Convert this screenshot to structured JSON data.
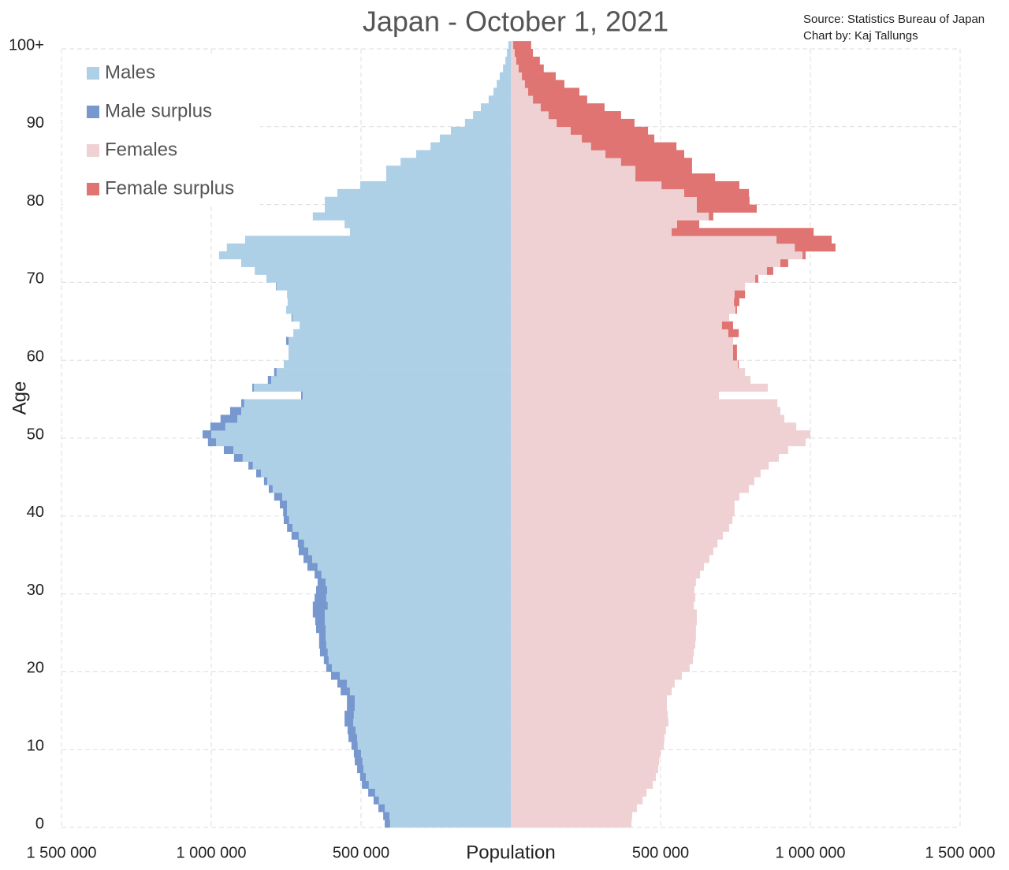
{
  "chart_data": {
    "type": "population-pyramid",
    "title": "Japan - October 1, 2021",
    "source": "Source: Statistics Bureau of Japan",
    "credit": "Chart by: Kaj Tallungs",
    "x_label": "Population",
    "y_label": "Age",
    "ages": [
      0,
      1,
      2,
      3,
      4,
      5,
      6,
      7,
      8,
      9,
      10,
      11,
      12,
      13,
      14,
      15,
      16,
      17,
      18,
      19,
      20,
      21,
      22,
      23,
      24,
      25,
      26,
      27,
      28,
      29,
      30,
      31,
      32,
      33,
      34,
      35,
      36,
      37,
      38,
      39,
      40,
      41,
      42,
      43,
      44,
      45,
      46,
      47,
      48,
      49,
      50,
      51,
      52,
      53,
      54,
      55,
      56,
      57,
      58,
      59,
      60,
      61,
      62,
      63,
      64,
      65,
      66,
      67,
      68,
      69,
      70,
      71,
      72,
      73,
      74,
      75,
      76,
      77,
      78,
      79,
      80,
      81,
      82,
      83,
      84,
      85,
      86,
      87,
      88,
      89,
      90,
      91,
      92,
      93,
      94,
      95,
      96,
      97,
      98,
      99,
      100
    ],
    "series": [
      {
        "name": "Males",
        "color": "#aed0e7",
        "surplus_name": "Male surplus",
        "surplus_color": "#7698cf",
        "values": [
          421000,
          426000,
          442000,
          458000,
          476000,
          497000,
          503000,
          513000,
          521000,
          524000,
          532000,
          542000,
          545000,
          555000,
          555000,
          547000,
          547000,
          568000,
          579000,
          600000,
          616000,
          624000,
          637000,
          640000,
          640000,
          650000,
          653000,
          661000,
          661000,
          655000,
          650000,
          645000,
          655000,
          679000,
          692000,
          708000,
          711000,
          732000,
          747000,
          758000,
          760000,
          771000,
          790000,
          808000,
          824000,
          850000,
          876000,
          924000,
          958000,
          1011000,
          1029000,
          1003000,
          969000,
          937000,
          900000,
          700000,
          863000,
          811000,
          790000,
          758000,
          742000,
          742000,
          750000,
          726000,
          705000,
          732000,
          750000,
          745000,
          747000,
          784000,
          816000,
          855000,
          900000,
          974000,
          948000,
          887000,
          537000,
          555000,
          661000,
          621000,
          621000,
          579000,
          503000,
          416000,
          416000,
          368000,
          316000,
          268000,
          237000,
          200000,
          153000,
          126000,
          100000,
          74000,
          58000,
          47000,
          37000,
          26000,
          18000,
          13000,
          8000
        ]
      },
      {
        "name": "Females",
        "color": "#efd1d3",
        "surplus_name": "Female surplus",
        "surplus_color": "#df7472",
        "values": [
          403000,
          405000,
          421000,
          440000,
          453000,
          474000,
          484000,
          492000,
          495000,
          500000,
          511000,
          513000,
          518000,
          526000,
          524000,
          521000,
          521000,
          537000,
          547000,
          571000,
          597000,
          608000,
          611000,
          616000,
          618000,
          618000,
          621000,
          621000,
          611000,
          616000,
          613000,
          618000,
          632000,
          645000,
          663000,
          676000,
          690000,
          708000,
          729000,
          740000,
          747000,
          747000,
          763000,
          795000,
          813000,
          834000,
          861000,
          895000,
          926000,
          984000,
          1000000,
          953000,
          913000,
          900000,
          890000,
          695000,
          858000,
          800000,
          782000,
          761000,
          755000,
          755000,
          742000,
          761000,
          742000,
          729000,
          755000,
          763000,
          782000,
          782000,
          826000,
          876000,
          926000,
          984000,
          1084000,
          1071000,
          1011000,
          629000,
          676000,
          821000,
          797000,
          795000,
          763000,
          682000,
          605000,
          605000,
          579000,
          553000,
          479000,
          458000,
          413000,
          368000,
          313000,
          255000,
          229000,
          179000,
          150000,
          110000,
          97000,
          74000,
          68000
        ]
      }
    ],
    "xlim": [
      0,
      1500000
    ],
    "xticks": [
      {
        "value": 500000,
        "label": "500 000"
      },
      {
        "value": 1000000,
        "label": "1 000 000"
      },
      {
        "value": 1500000,
        "label": "1 500 000"
      }
    ],
    "ylim": [
      0,
      100
    ],
    "yticks": [
      0,
      10,
      20,
      30,
      40,
      50,
      60,
      70,
      80,
      90,
      {
        "value": 100,
        "label": "100+"
      }
    ],
    "grid": true,
    "legend": "top-left"
  }
}
